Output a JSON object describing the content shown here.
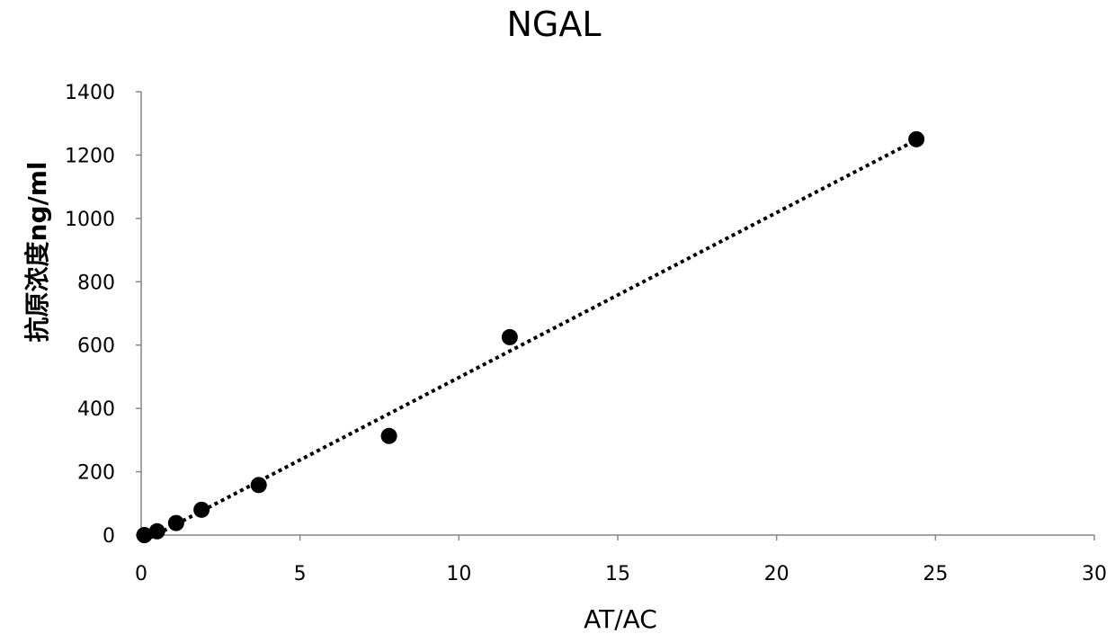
{
  "chart_data": {
    "type": "scatter",
    "title": "NGAL",
    "xlabel": "AT/AC",
    "ylabel": "抗原浓度ng/ml",
    "xlim": [
      0,
      30
    ],
    "ylim": [
      0,
      1400
    ],
    "xticks": [
      0,
      5,
      10,
      15,
      20,
      25,
      30
    ],
    "yticks": [
      0,
      200,
      400,
      600,
      800,
      1000,
      1200,
      1400
    ],
    "grid": false,
    "legend": "none",
    "marker_color": "#000000",
    "trendline": {
      "type": "linear",
      "style": "dotted",
      "color": "#000000",
      "x_range": [
        0.1,
        24.4
      ]
    },
    "series": [
      {
        "points": [
          {
            "x": 0.1,
            "y": 0
          },
          {
            "x": 0.5,
            "y": 12
          },
          {
            "x": 1.1,
            "y": 38
          },
          {
            "x": 1.9,
            "y": 80
          },
          {
            "x": 3.7,
            "y": 158
          },
          {
            "x": 7.8,
            "y": 313
          },
          {
            "x": 11.6,
            "y": 625
          },
          {
            "x": 24.4,
            "y": 1250
          }
        ]
      }
    ]
  }
}
